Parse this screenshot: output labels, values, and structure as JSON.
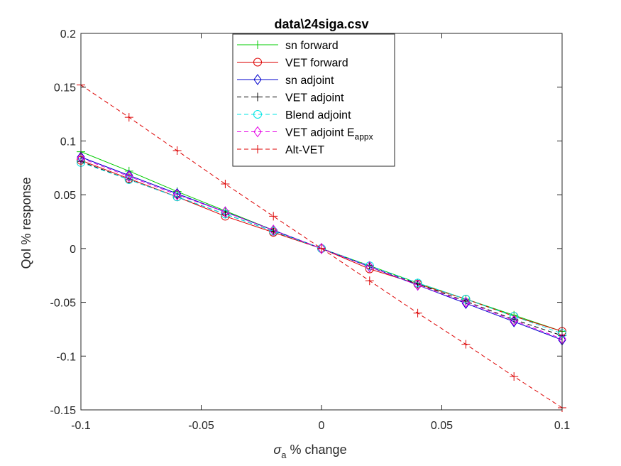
{
  "chart_data": {
    "type": "line",
    "title": "data\\24siga.csv",
    "xlabel": {
      "symbol": "σ",
      "subscript": "a",
      "text": " % change"
    },
    "ylabel": "QoI % response",
    "xlim": [
      -0.1,
      0.1
    ],
    "ylim": [
      -0.15,
      0.2
    ],
    "xticks": [
      "-0.1",
      "-0.05",
      "0",
      "0.05",
      "0.1"
    ],
    "yticks": [
      "-0.15",
      "-0.1",
      "-0.05",
      "0",
      "0.05",
      "0.1",
      "0.15",
      "0.2"
    ],
    "grid": false,
    "legend_position": "top-center",
    "x": [
      -0.1,
      -0.08,
      -0.06,
      -0.04,
      -0.02,
      0,
      0.02,
      0.04,
      0.06,
      0.08,
      0.1
    ],
    "series": [
      {
        "name": "sn forward",
        "legend_main": "sn forward",
        "legend_sub": "",
        "color": "#00cc00",
        "linestyle": "solid",
        "marker": "plus",
        "values": [
          0.09,
          0.072,
          0.053,
          0.035,
          0.017,
          0,
          -0.016,
          -0.032,
          -0.047,
          -0.062,
          -0.077
        ]
      },
      {
        "name": "VET forward",
        "legend_main": "VET forward",
        "legend_sub": "",
        "color": "#dd0000",
        "linestyle": "solid",
        "marker": "circle",
        "values": [
          0.082,
          0.065,
          0.048,
          0.03,
          0.015,
          0,
          -0.019,
          -0.033,
          -0.047,
          -0.063,
          -0.077
        ]
      },
      {
        "name": "sn adjoint",
        "legend_main": "sn adjoint",
        "legend_sub": "",
        "color": "#0000cc",
        "linestyle": "solid",
        "marker": "diamond",
        "values": [
          0.085,
          0.068,
          0.051,
          0.034,
          0.017,
          0,
          -0.017,
          -0.034,
          -0.051,
          -0.068,
          -0.085
        ]
      },
      {
        "name": "VET adjoint",
        "legend_main": "VET adjoint",
        "legend_sub": "",
        "color": "#000000",
        "linestyle": "dashed",
        "marker": "plus",
        "values": [
          0.081,
          0.064,
          0.048,
          0.032,
          0.016,
          0,
          -0.016,
          -0.033,
          -0.049,
          -0.066,
          -0.081
        ]
      },
      {
        "name": "Blend adjoint",
        "legend_main": "Blend adjoint",
        "legend_sub": "",
        "color": "#00e5e5",
        "linestyle": "dashed",
        "marker": "circle",
        "values": [
          0.08,
          0.064,
          0.048,
          0.032,
          0.016,
          0,
          -0.016,
          -0.032,
          -0.047,
          -0.063,
          -0.079
        ]
      },
      {
        "name": "VET adjoint E_appx",
        "legend_main": "VET adjoint E",
        "legend_sub": "appx",
        "color": "#e500e5",
        "linestyle": "dashed",
        "marker": "diamond",
        "values": [
          0.084,
          0.067,
          0.05,
          0.034,
          0.017,
          0,
          -0.017,
          -0.034,
          -0.05,
          -0.067,
          -0.084
        ]
      },
      {
        "name": "Alt-VET",
        "legend_main": "Alt-VET",
        "legend_sub": "",
        "color": "#dd0000",
        "linestyle": "dashed",
        "marker": "plus",
        "values": [
          0.152,
          0.122,
          0.091,
          0.06,
          0.03,
          0,
          -0.03,
          -0.06,
          -0.089,
          -0.119,
          -0.148
        ]
      }
    ]
  }
}
